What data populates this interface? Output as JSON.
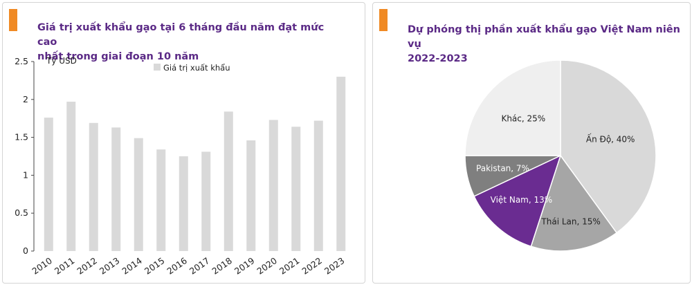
{
  "colors": {
    "accent": "#f08a24",
    "title": "#5b2a86",
    "bar": "#d9d9d9",
    "axis_text": "#222222"
  },
  "chart_data": [
    {
      "type": "bar",
      "title_line1": "Giá trị xuất khẩu gạo tại 6 tháng đầu năm đạt mức cao",
      "title_line2": "nhất trong giai đoạn 10 năm",
      "ylabel": "Tỷ USD",
      "xlabel": "",
      "legend": "Giá trị xuất khẩu",
      "ylim": [
        0,
        2.5
      ],
      "yticks": [
        "0",
        "0.5",
        "1",
        "1.5",
        "2",
        "2.5"
      ],
      "categories": [
        "2010",
        "2011",
        "2012",
        "2013",
        "2014",
        "2015",
        "2016",
        "2017",
        "2018",
        "2019",
        "2020",
        "2021",
        "2022",
        "2023"
      ],
      "values": [
        1.76,
        1.97,
        1.69,
        1.63,
        1.49,
        1.34,
        1.25,
        1.31,
        1.84,
        1.46,
        1.73,
        1.64,
        1.72,
        2.3
      ]
    },
    {
      "type": "pie",
      "title_line1": "Dự phóng thị phần xuất khẩu gạo Việt Nam niên vụ",
      "title_line2": "2022-2023",
      "slices": [
        {
          "label": "Ấn Độ, 40%",
          "value": 40,
          "color": "#d9d9d9"
        },
        {
          "label": "Thái Lan, 15%",
          "value": 15,
          "color": "#a6a6a6"
        },
        {
          "label": "Việt Nam, 13%",
          "value": 13,
          "color": "#6a2c91"
        },
        {
          "label": "Pakistan, 7%",
          "value": 7,
          "color": "#7f7f7f"
        },
        {
          "label": "Khác, 25%",
          "value": 25,
          "color": "#efefef"
        }
      ]
    }
  ]
}
